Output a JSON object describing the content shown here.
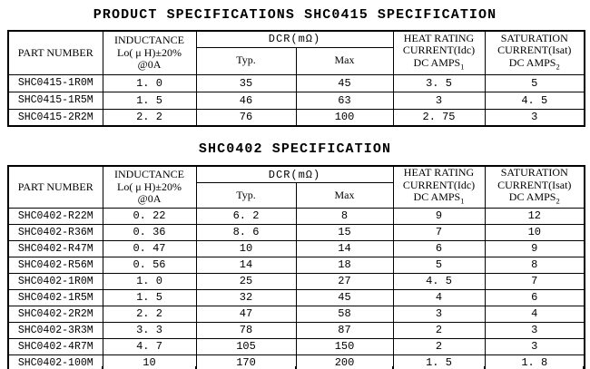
{
  "titles": {
    "main": "PRODUCT SPECIFICATIONS SHC0415 SPECIFICATION",
    "second": "SHC0402 SPECIFICATION"
  },
  "columns": {
    "part_number": "PART NUMBER",
    "inductance": [
      "INDUCTANCE",
      "Lo( μ H)±20%",
      "@0A"
    ],
    "dcr_group": "DCR(mΩ)",
    "dcr_typ": "Typ.",
    "dcr_max": "Max",
    "heat_rating": [
      "HEAT RATING",
      "CURRENT(Idc)",
      "DC AMPS"
    ],
    "heat_sub": "1",
    "saturation": [
      "SATURATION",
      "CURRENT(Isat)",
      "DC AMPS"
    ],
    "saturation_sub": "2"
  },
  "shc0415": {
    "rows": [
      {
        "part": "SHC0415-1R0M",
        "inductance": "1. 0",
        "typ": "35",
        "max": "45",
        "heat": "3. 5",
        "sat": "5"
      },
      {
        "part": "SHC0415-1R5M",
        "inductance": "1. 5",
        "typ": "46",
        "max": "63",
        "heat": "3",
        "sat": "4. 5"
      },
      {
        "part": "SHC0415-2R2M",
        "inductance": "2. 2",
        "typ": "76",
        "max": "100",
        "heat": "2. 75",
        "sat": "3"
      }
    ]
  },
  "shc0402": {
    "rows": [
      {
        "part": "SHC0402-R22M",
        "inductance": "0. 22",
        "typ": "6. 2",
        "max": "8",
        "heat": "9",
        "sat": "12"
      },
      {
        "part": "SHC0402-R36M",
        "inductance": "0. 36",
        "typ": "8. 6",
        "max": "15",
        "heat": "7",
        "sat": "10"
      },
      {
        "part": "SHC0402-R47M",
        "inductance": "0. 47",
        "typ": "10",
        "max": "14",
        "heat": "6",
        "sat": "9"
      },
      {
        "part": "SHC0402-R56M",
        "inductance": "0. 56",
        "typ": "14",
        "max": "18",
        "heat": "5",
        "sat": "8"
      },
      {
        "part": "SHC0402-1R0M",
        "inductance": "1. 0",
        "typ": "25",
        "max": "27",
        "heat": "4. 5",
        "sat": "7"
      },
      {
        "part": "SHC0402-1R5M",
        "inductance": "1. 5",
        "typ": "32",
        "max": "45",
        "heat": "4",
        "sat": "6"
      },
      {
        "part": "SHC0402-2R2M",
        "inductance": "2. 2",
        "typ": "47",
        "max": "58",
        "heat": "3",
        "sat": "4"
      },
      {
        "part": "SHC0402-3R3M",
        "inductance": "3. 3",
        "typ": "78",
        "max": "87",
        "heat": "2",
        "sat": "3"
      },
      {
        "part": "SHC0402-4R7M",
        "inductance": "4. 7",
        "typ": "105",
        "max": "150",
        "heat": "2",
        "sat": "3"
      },
      {
        "part": "SHC0402-100M",
        "inductance": "10",
        "typ": "170",
        "max": "200",
        "heat": "1. 5",
        "sat": "1. 8"
      }
    ]
  },
  "colors": {
    "text": "#000000",
    "border": "#000000",
    "background": "#ffffff"
  }
}
